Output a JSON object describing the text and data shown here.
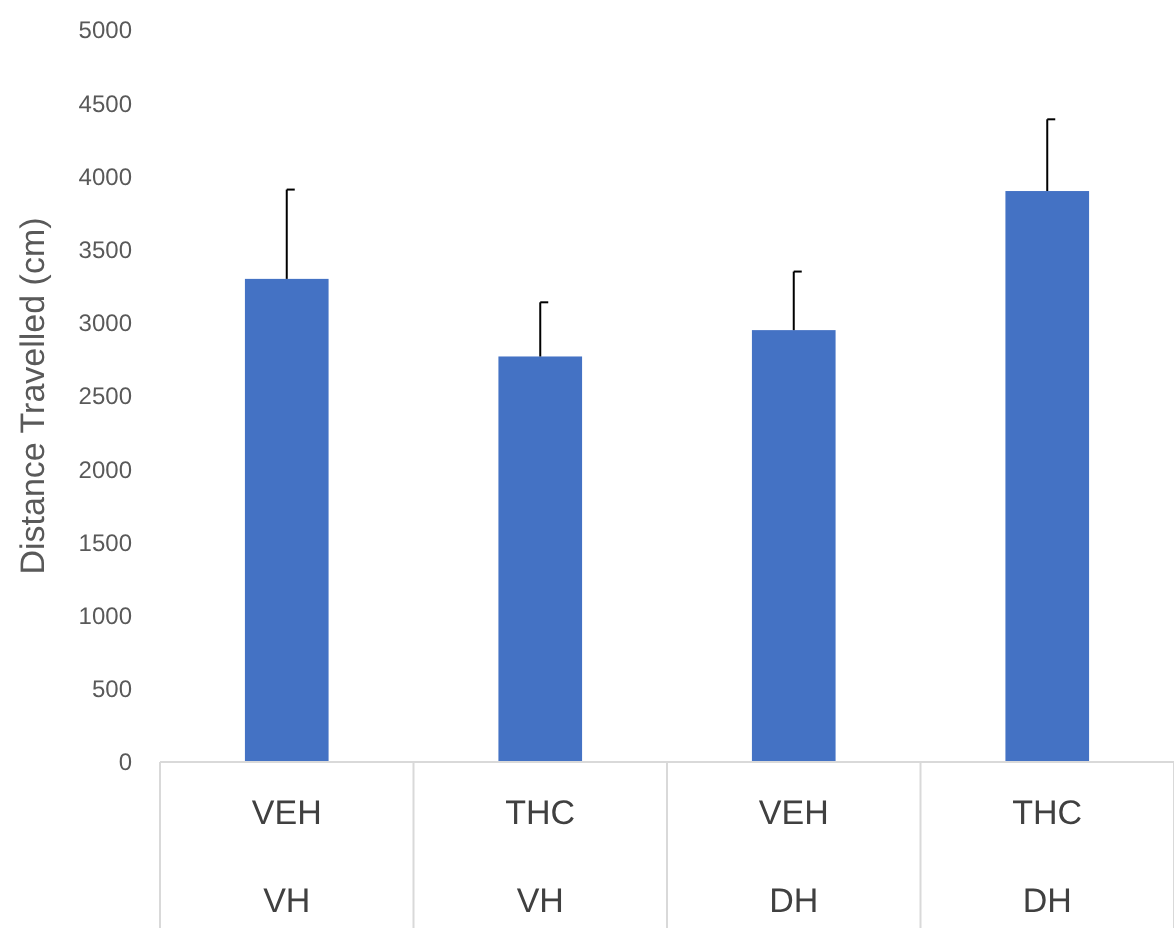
{
  "chart_data": {
    "type": "bar",
    "ylabel": "Distance Travelled (cm)",
    "categories": [
      "VEH\nVH",
      "THC\nVH",
      "VEH\nDH",
      "THC\nDH"
    ],
    "values": [
      3300,
      2770,
      2950,
      3900
    ],
    "errors": [
      [
        3300,
        3910
      ],
      [
        2770,
        3140
      ],
      [
        2950,
        3350
      ],
      [
        3900,
        4390
      ]
    ],
    "color": "#4472c4",
    "ylim": [
      0,
      5000
    ],
    "yticks": [
      0,
      500,
      1000,
      1500,
      2000,
      2500,
      3000,
      3500,
      4000,
      4500,
      5000
    ],
    "grid": false
  }
}
